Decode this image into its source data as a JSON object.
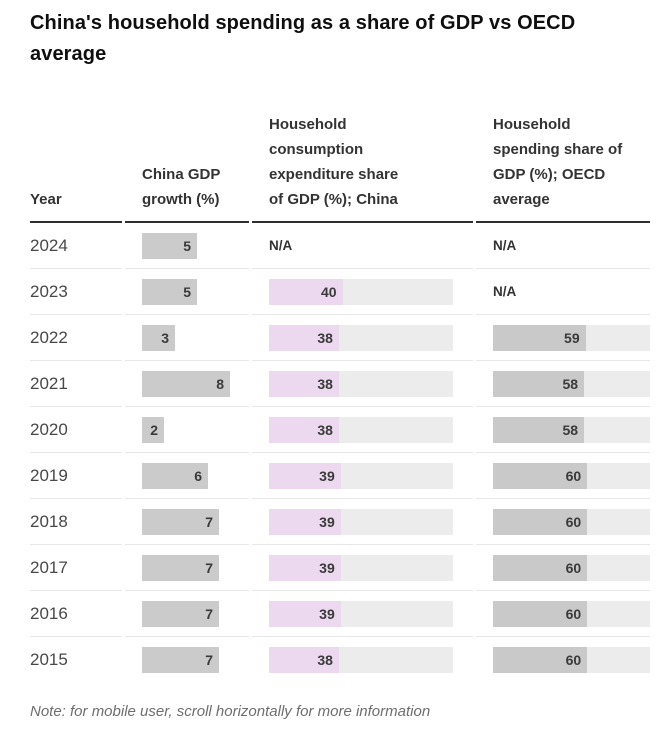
{
  "title": "China's household spending as a share of GDP vs OECD average",
  "note": "Note: for mobile user, scroll horizontally for more information",
  "na_label": "N/A",
  "columns": {
    "year": "Year",
    "gdp": "China GDP growth (%)",
    "china": "Household consumption expenditure share of GDP (%); China",
    "oecd": "Household spending share of GDP (%); OECD average"
  },
  "colors": {
    "gdp_bar": "#cbcbcb",
    "china_fill": "#ecd9f0",
    "oecd_fill": "#c9c9c9",
    "bar_track": "#ececec",
    "value_text": "#3a3a3a",
    "header_rule": "#2e2e2e",
    "row_rule": "#e7e7e7"
  },
  "chart_data": {
    "type": "bar",
    "title": "China's household spending as a share of GDP vs OECD average",
    "unit": "%",
    "axis_max": 100,
    "categories": [
      "2024",
      "2023",
      "2022",
      "2021",
      "2020",
      "2019",
      "2018",
      "2017",
      "2016",
      "2015"
    ],
    "series": [
      {
        "name": "China GDP growth (%)",
        "values": [
          5,
          5,
          3,
          8,
          2,
          6,
          7,
          7,
          7,
          7
        ]
      },
      {
        "name": "Household consumption expenditure share of GDP (%); China",
        "values": [
          null,
          40,
          38,
          38,
          38,
          39,
          39,
          39,
          39,
          38
        ]
      },
      {
        "name": "Household spending share of GDP (%); OECD average",
        "values": [
          null,
          null,
          59,
          58,
          58,
          60,
          60,
          60,
          60,
          60
        ]
      }
    ],
    "rows": [
      {
        "year": "2024",
        "gdp_growth": 5,
        "china_share": null,
        "oecd_share": null
      },
      {
        "year": "2023",
        "gdp_growth": 5,
        "china_share": 40,
        "oecd_share": null
      },
      {
        "year": "2022",
        "gdp_growth": 3,
        "china_share": 38,
        "oecd_share": 59
      },
      {
        "year": "2021",
        "gdp_growth": 8,
        "china_share": 38,
        "oecd_share": 58
      },
      {
        "year": "2020",
        "gdp_growth": 2,
        "china_share": 38,
        "oecd_share": 58
      },
      {
        "year": "2019",
        "gdp_growth": 6,
        "china_share": 39,
        "oecd_share": 60
      },
      {
        "year": "2018",
        "gdp_growth": 7,
        "china_share": 39,
        "oecd_share": 60
      },
      {
        "year": "2017",
        "gdp_growth": 7,
        "china_share": 39,
        "oecd_share": 60
      },
      {
        "year": "2016",
        "gdp_growth": 7,
        "china_share": 39,
        "oecd_share": 60
      },
      {
        "year": "2015",
        "gdp_growth": 7,
        "china_share": 38,
        "oecd_share": 60
      }
    ]
  }
}
